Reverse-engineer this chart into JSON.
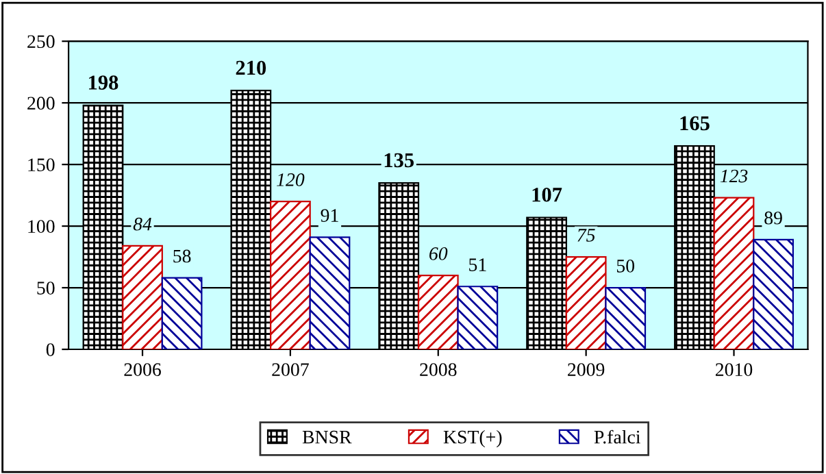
{
  "chart_data": {
    "type": "bar",
    "categories": [
      "2006",
      "2007",
      "2008",
      "2009",
      "2010"
    ],
    "series": [
      {
        "name": "BNSR",
        "color": "#000000",
        "values": [
          198,
          210,
          135,
          107,
          165
        ]
      },
      {
        "name": "KST(+)",
        "color": "#cc0000",
        "values": [
          84,
          120,
          60,
          75,
          123
        ]
      },
      {
        "name": "P.falci",
        "color": "#000099",
        "values": [
          58,
          91,
          51,
          50,
          89
        ]
      }
    ],
    "ylim": [
      0,
      250
    ],
    "yticks": [
      0,
      50,
      100,
      150,
      200,
      250
    ],
    "grid": "y",
    "legend": "bottom",
    "data_labels": true
  }
}
